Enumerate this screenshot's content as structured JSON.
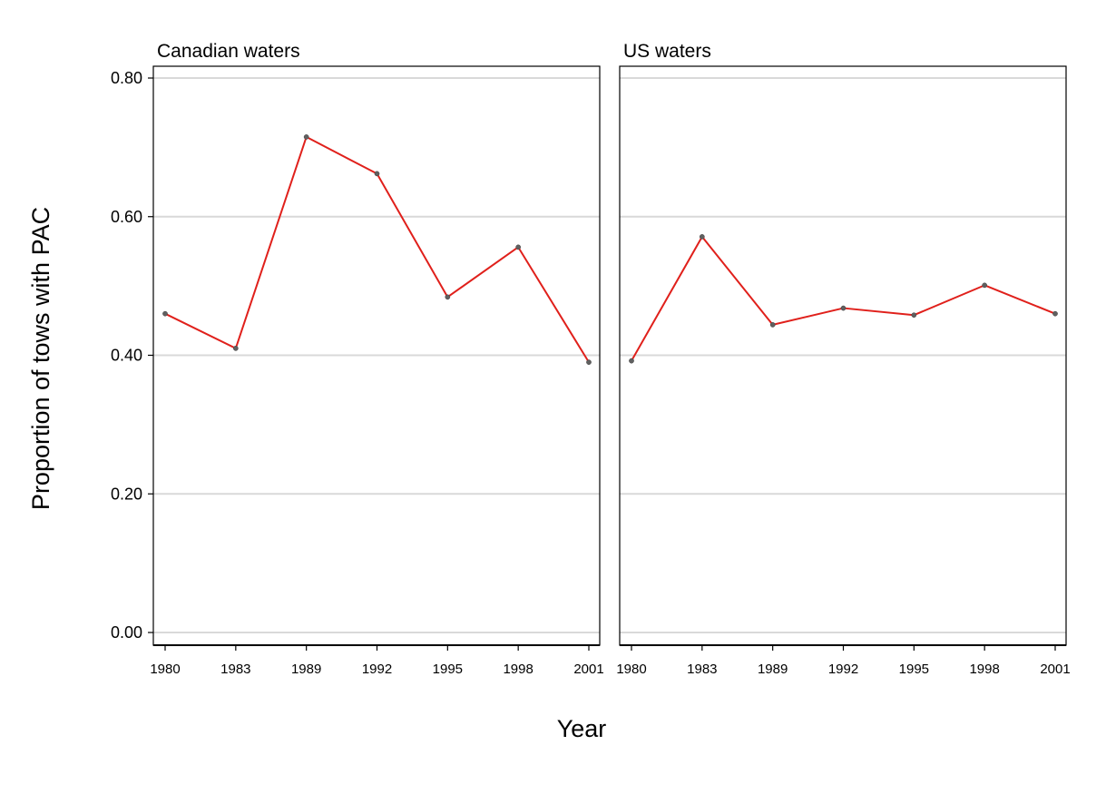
{
  "chart_data": {
    "type": "line",
    "ylabel": "Proportion of tows with PAC",
    "xlabel": "Year",
    "ylim": [
      0,
      0.8
    ],
    "yticks": [
      "0.00",
      "0.20",
      "0.40",
      "0.60",
      "0.80"
    ],
    "grid": "horizontal",
    "categories": [
      "1980",
      "1983",
      "1989",
      "1992",
      "1995",
      "1998",
      "2001"
    ],
    "line_color": "#e0201b",
    "marker_color": "#606060",
    "panels": [
      {
        "title": "Canadian waters",
        "values": [
          0.46,
          0.41,
          0.715,
          0.662,
          0.484,
          0.556,
          0.39
        ]
      },
      {
        "title": "US waters",
        "values": [
          0.392,
          0.571,
          0.444,
          0.468,
          0.458,
          0.501,
          0.46
        ]
      }
    ]
  }
}
